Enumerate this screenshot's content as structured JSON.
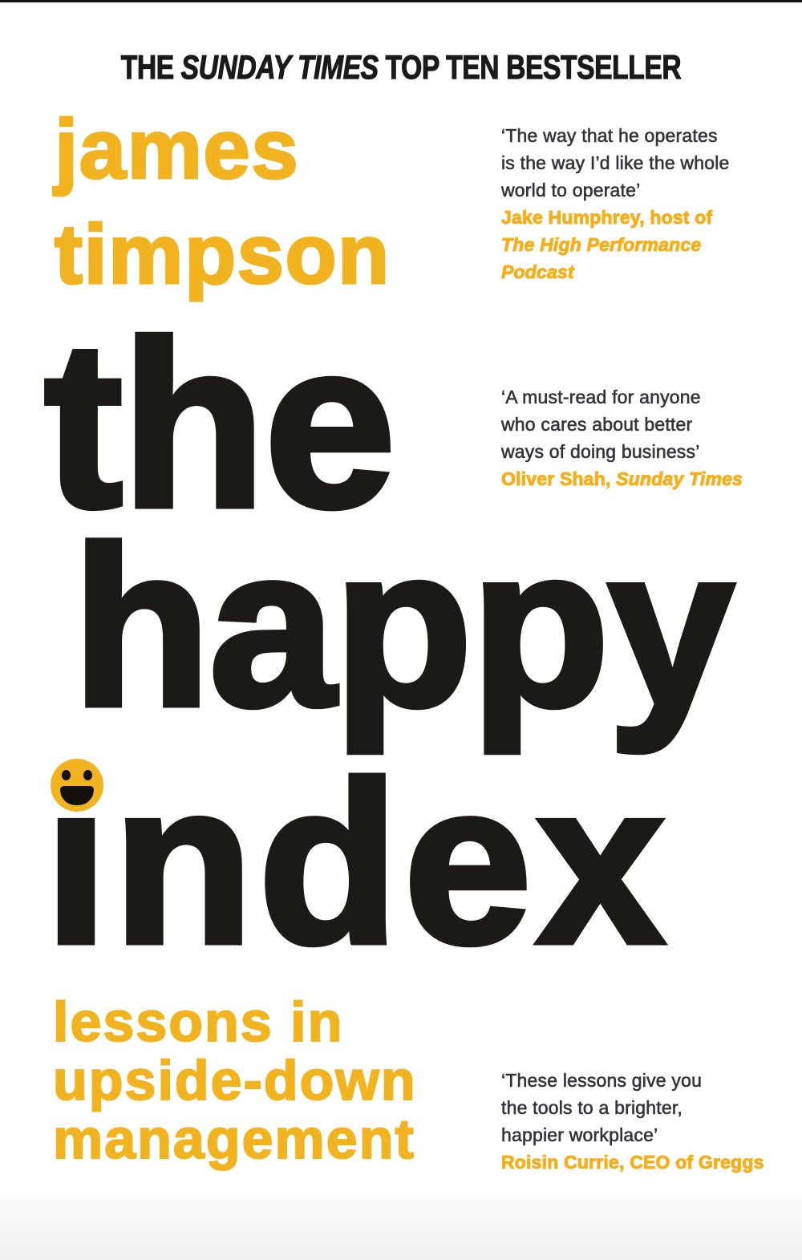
{
  "banner": {
    "prefix": "THE ",
    "highlight": "SUNDAY TIMES",
    "suffix": " TOP TEN BESTSELLER"
  },
  "author": {
    "first_name": "james",
    "last_name": "timpson"
  },
  "title": {
    "word1": "the",
    "word2": "happy",
    "word3": "index",
    "word3_display": "ındex",
    "smiley_icon": "smiley-face"
  },
  "subtitle": {
    "line1": "lessons in",
    "line2": "upside-down",
    "line3": "management"
  },
  "quotes": [
    {
      "lines": [
        "‘The way that he operates",
        "is the way I’d like the whole",
        "world to operate’"
      ],
      "attribution": "Jake Humphrey, host of",
      "attribution_source": "The High Performance Podcast"
    },
    {
      "lines": [
        "‘A must-read for anyone",
        "who cares about better",
        "ways of doing business’"
      ],
      "attribution": "Oliver Shah,",
      "attribution_source": "Sunday Times"
    },
    {
      "lines": [
        "‘These lessons give you",
        "the tools to a brighter,",
        "happier workplace’"
      ],
      "attribution": "Roisin Currie, CEO of Greggs",
      "attribution_source": ""
    }
  ],
  "colors": {
    "accent_yellow": "#F2B320",
    "title_black": "#1C1A17",
    "quote_text": "#33353A",
    "background": "#FFFFFF"
  }
}
